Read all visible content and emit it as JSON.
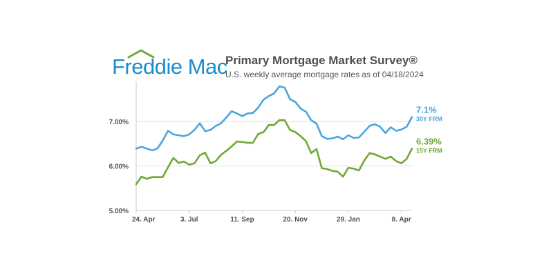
{
  "header": {
    "logo_text": "Freddie Mac",
    "title": "Primary Mortgage Market Survey®",
    "subtitle": "U.S. weekly average mortgage rates as of 04/18/2024"
  },
  "colors": {
    "brand": "#1a8ccf",
    "frm30": "#49a6dc",
    "frm15": "#6fa832",
    "text": "#4a4f55",
    "grid": "#dcdcdc",
    "axis": "#c8c8c8"
  },
  "chart_data": {
    "type": "line",
    "title": "Primary Mortgage Market Survey®",
    "subtitle": "U.S. weekly average mortgage rates as of 04/18/2024",
    "xlabel": "",
    "ylabel": "",
    "ylim": [
      5.0,
      7.9
    ],
    "yticks": [
      {
        "value": 5.0,
        "label": "5.00%"
      },
      {
        "value": 6.0,
        "label": "6.00%"
      },
      {
        "value": 7.0,
        "label": "7.00%"
      }
    ],
    "xtick_labels": [
      "24. Apr",
      "3. Jul",
      "11. Sep",
      "20. Nov",
      "29. Jan",
      "8. Apr"
    ],
    "xtick_week_index": [
      0,
      10,
      20,
      30,
      40,
      50
    ],
    "x_dates": [
      "2023-04-20",
      "2023-04-27",
      "2023-05-04",
      "2023-05-11",
      "2023-05-18",
      "2023-05-25",
      "2023-06-01",
      "2023-06-08",
      "2023-06-15",
      "2023-06-22",
      "2023-06-29",
      "2023-07-06",
      "2023-07-13",
      "2023-07-20",
      "2023-07-27",
      "2023-08-03",
      "2023-08-10",
      "2023-08-17",
      "2023-08-24",
      "2023-08-31",
      "2023-09-07",
      "2023-09-14",
      "2023-09-21",
      "2023-09-28",
      "2023-10-05",
      "2023-10-12",
      "2023-10-19",
      "2023-10-26",
      "2023-11-02",
      "2023-11-09",
      "2023-11-16",
      "2023-11-22",
      "2023-11-30",
      "2023-12-07",
      "2023-12-14",
      "2023-12-21",
      "2023-12-28",
      "2024-01-04",
      "2024-01-11",
      "2024-01-18",
      "2024-01-25",
      "2024-02-01",
      "2024-02-08",
      "2024-02-15",
      "2024-02-22",
      "2024-02-29",
      "2024-03-07",
      "2024-03-14",
      "2024-03-21",
      "2024-03-28",
      "2024-04-04",
      "2024-04-11",
      "2024-04-18"
    ],
    "grid": true,
    "legend": "end-labels-right",
    "series": [
      {
        "name": "30Y FRM",
        "end_label": "7.1%",
        "color": "#49a6dc",
        "values": [
          6.39,
          6.43,
          6.39,
          6.35,
          6.39,
          6.57,
          6.79,
          6.71,
          6.69,
          6.67,
          6.71,
          6.81,
          6.96,
          6.78,
          6.81,
          6.9,
          6.96,
          7.09,
          7.23,
          7.18,
          7.12,
          7.18,
          7.19,
          7.31,
          7.49,
          7.57,
          7.63,
          7.79,
          7.76,
          7.5,
          7.44,
          7.29,
          7.22,
          7.03,
          6.95,
          6.67,
          6.61,
          6.62,
          6.66,
          6.6,
          6.69,
          6.63,
          6.64,
          6.77,
          6.9,
          6.94,
          6.88,
          6.74,
          6.87,
          6.79,
          6.82,
          6.88,
          7.1
        ]
      },
      {
        "name": "15Y FRM",
        "end_label": "6.39%",
        "color": "#6fa832",
        "values": [
          5.59,
          5.76,
          5.71,
          5.75,
          5.75,
          5.75,
          5.97,
          6.18,
          6.07,
          6.1,
          6.03,
          6.06,
          6.24,
          6.3,
          6.06,
          6.11,
          6.25,
          6.34,
          6.44,
          6.55,
          6.54,
          6.52,
          6.52,
          6.72,
          6.76,
          6.92,
          6.92,
          7.03,
          7.03,
          6.81,
          6.76,
          6.67,
          6.56,
          6.29,
          6.38,
          5.95,
          5.93,
          5.89,
          5.87,
          5.76,
          5.96,
          5.94,
          5.9,
          6.12,
          6.29,
          6.26,
          6.21,
          6.16,
          6.21,
          6.11,
          6.06,
          6.16,
          6.39
        ]
      }
    ]
  }
}
